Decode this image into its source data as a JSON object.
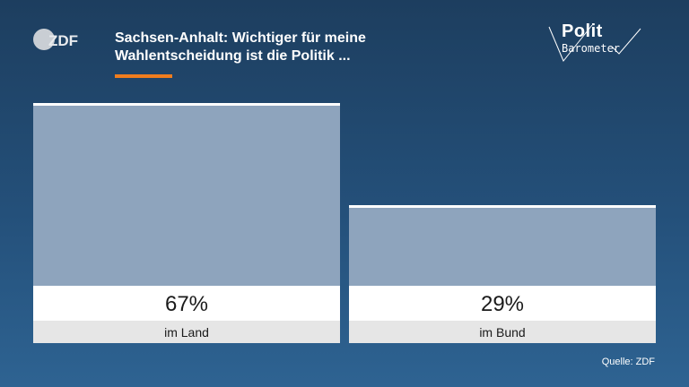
{
  "header": {
    "logo": "ZDF",
    "title_line1": "Sachsen-Anhalt: Wichtiger für meine",
    "title_line2": "Wahlentscheidung ist die Politik ..."
  },
  "brand": {
    "line1": "Polit",
    "line2": "Barometer"
  },
  "colors": {
    "bar": "#8ea4bd",
    "bar_top_line": "#ffffff",
    "value_box": "#ffffff",
    "label_box": "#e6e6e6",
    "accent": "#f07d1e",
    "text_dark": "#1a1a1a"
  },
  "chart_data": {
    "type": "bar",
    "title": "Sachsen-Anhalt: Wichtiger für meine Wahlentscheidung ist die Politik ...",
    "categories": [
      "im Land",
      "im Bund"
    ],
    "values": [
      67,
      29
    ],
    "value_labels": [
      "67%",
      "29%"
    ],
    "unit": "%",
    "ylim": [
      0,
      67
    ],
    "grid": false
  },
  "footer": {
    "source": "Quelle: ZDF"
  }
}
